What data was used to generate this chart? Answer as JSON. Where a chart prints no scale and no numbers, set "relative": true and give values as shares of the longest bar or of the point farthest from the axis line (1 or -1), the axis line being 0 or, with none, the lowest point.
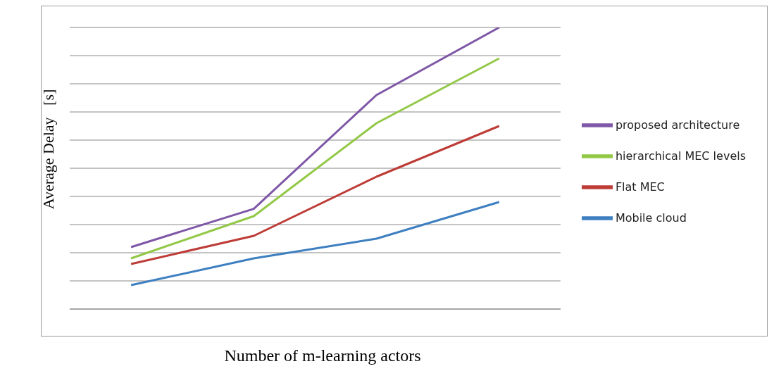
{
  "chart_data": {
    "type": "line",
    "xlabel": "Number of m-learning actors",
    "ylabel": "Average Delay   [s]",
    "relative": true,
    "grid": "y",
    "legend": "right",
    "marker": "none",
    "line_style": "solid",
    "categories": [
      null,
      null,
      null,
      null
    ],
    "series": [
      {
        "name": "proposed  architecture",
        "color": "#7e57a6",
        "values": [
          0.22,
          0.356,
          0.76,
          1
        ]
      },
      {
        "name": "hierarchical MEC levels",
        "color": "#93c847",
        "values": [
          0.18,
          0.33,
          0.66,
          0.89
        ]
      },
      {
        "name": "Flat MEC",
        "color": "#be3c37",
        "values": [
          0.16,
          0.26,
          0.47,
          0.65
        ]
      },
      {
        "name": "Mobile cloud",
        "color": "#3e7fc1",
        "values": [
          0.085,
          0.18,
          0.25,
          0.38
        ]
      }
    ]
  }
}
